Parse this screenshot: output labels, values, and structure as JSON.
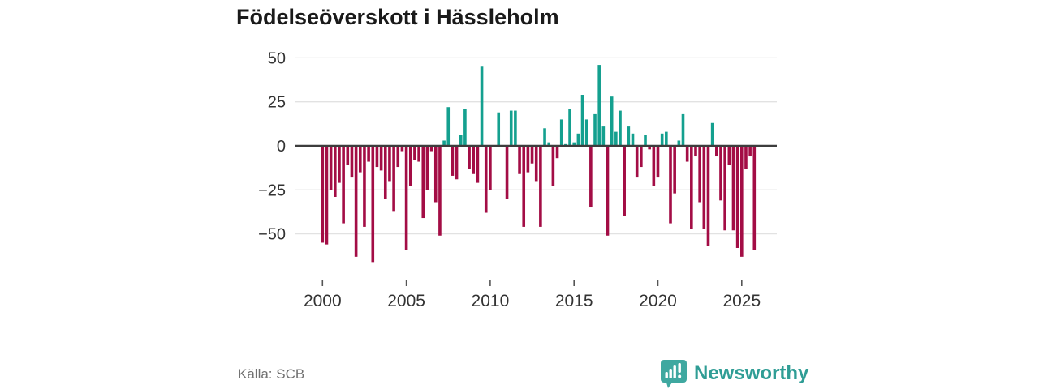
{
  "title": "Födelseöverskott i Hässleholm",
  "source": {
    "label": "Källa: SCB"
  },
  "brand": {
    "name": "Newsworthy",
    "icon": "newsworthy-bar-chart-bubble-icon"
  },
  "colors": {
    "positive": "#14a08f",
    "negative": "#a30d45",
    "grid": "#e2e2e2",
    "zero_line": "#3d3d3d",
    "axis_text": "#333333",
    "tick_mark": "#555555",
    "title_text": "#1a1a1a",
    "source_text": "#717171",
    "brand_teal": "#2f9d95",
    "background": "#ffffff"
  },
  "chart_data": {
    "type": "bar",
    "title": "Födelseöverskott i Hässleholm",
    "frequency": "quarterly",
    "start": "2000Q1",
    "end": "2025Q4",
    "grid": "horizontal",
    "legend": "none",
    "y_ticks": [
      50,
      25,
      0,
      -25,
      -50
    ],
    "y_tick_labels": [
      "50",
      "25",
      "0",
      "−25",
      "−50"
    ],
    "x_tick_years": [
      2000,
      2005,
      2010,
      2015,
      2020,
      2025
    ],
    "x_tick_labels": [
      "2000",
      "2005",
      "2010",
      "2015",
      "2020",
      "2025"
    ],
    "ylim": [
      -70,
      55
    ],
    "values": [
      -55,
      -56,
      -25,
      -29,
      -21,
      -44,
      -11,
      -18,
      -63,
      -15,
      -46,
      -9,
      -66,
      -12,
      -14,
      -30,
      -20,
      -37,
      -12,
      -3,
      -59,
      -23,
      -8,
      -9,
      -41,
      -25,
      -3,
      -32,
      -51,
      3,
      22,
      -17,
      -19,
      6,
      21,
      -13,
      -16,
      -21,
      45,
      -38,
      -25,
      0,
      19,
      0,
      -30,
      20,
      20,
      -16,
      -46,
      -15,
      -10,
      -20,
      -46,
      10,
      2,
      -23,
      -7,
      15,
      1,
      21,
      2,
      7,
      29,
      15,
      -35,
      18,
      46,
      11,
      -51,
      28,
      8,
      20,
      -40,
      11,
      7,
      -18,
      -12,
      6,
      -2,
      -23,
      -18,
      7,
      8,
      -44,
      -27,
      3,
      18,
      -9,
      -47,
      -6,
      -32,
      -47,
      -57,
      13,
      -6,
      -31,
      -48,
      -11,
      -48,
      -58,
      -63,
      -13,
      -6,
      -59
    ]
  }
}
